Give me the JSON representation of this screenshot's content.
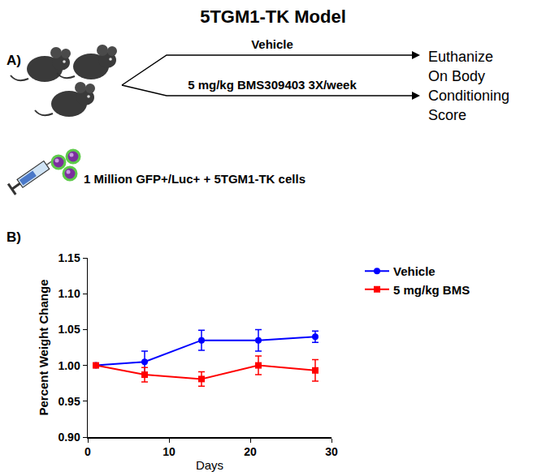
{
  "header": {
    "title": "5TGM1-TK Model"
  },
  "panel_a": {
    "label": "A)",
    "arms": [
      "Vehicle",
      "5 mg/kg BMS309403 3X/week"
    ],
    "endpoint": [
      "Euthanize",
      "On Body",
      "Conditioning",
      "Score"
    ],
    "injection": "1 Million GFP+/Luc+ + 5TGM1-TK cells"
  },
  "panel_b": {
    "label": "B)"
  },
  "chart_data": {
    "type": "line",
    "x_label": "Days",
    "y_label": "Percent Weight Change",
    "x": [
      1,
      7,
      14,
      21,
      28
    ],
    "series": [
      {
        "name": "Vehicle",
        "color": "#0000ff",
        "marker": "circle",
        "values": [
          1.0,
          1.005,
          1.035,
          1.035,
          1.04
        ],
        "error": [
          0,
          0.015,
          0.014,
          0.015,
          0.008
        ]
      },
      {
        "name": "5 mg/kg BMS",
        "color": "#ff0000",
        "marker": "square",
        "values": [
          1.0,
          0.987,
          0.981,
          1.0,
          0.993
        ],
        "error": [
          0,
          0.01,
          0.01,
          0.013,
          0.015
        ]
      }
    ],
    "xlim": [
      0,
      30
    ],
    "xticks": [
      0,
      10,
      20,
      30
    ],
    "ylim": [
      0.9,
      1.15
    ],
    "yticks": [
      {
        "value": 0.9,
        "label": "0.90"
      },
      0.95,
      {
        "value": 1.0,
        "label": "1.00"
      },
      1.05,
      {
        "value": 1.1,
        "label": "1.10"
      },
      1.15
    ],
    "grid": false,
    "legend": "right"
  }
}
